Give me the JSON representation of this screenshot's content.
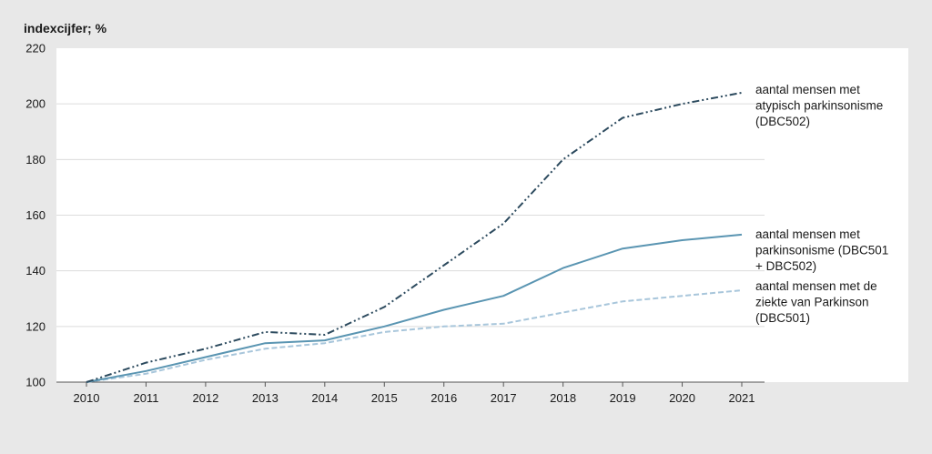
{
  "chart_data": {
    "type": "line",
    "ylabel": "indexcijfer; %",
    "xlabel": "",
    "title": "",
    "x": [
      "2010",
      "2011",
      "2012",
      "2013",
      "2014",
      "2015",
      "2016",
      "2017",
      "2018",
      "2019",
      "2020",
      "2021"
    ],
    "ylim": [
      100,
      220
    ],
    "yticks": [
      100,
      120,
      140,
      160,
      180,
      200,
      220
    ],
    "grid": true,
    "series": [
      {
        "annotation": [
          "aantal mensen met",
          "atypisch parkinsonisme",
          "(DBC502)"
        ],
        "color": "#2c4a5e",
        "style": "dash-dot-dot",
        "values": [
          100,
          107,
          112,
          118,
          117,
          127,
          142,
          157,
          180,
          195,
          200,
          204
        ]
      },
      {
        "annotation": [
          "aantal mensen met",
          "parkinsonisme (DBC501",
          "+ DBC502)"
        ],
        "color": "#5a95b2",
        "style": "solid",
        "values": [
          100,
          104,
          109,
          114,
          115,
          120,
          126,
          131,
          141,
          148,
          151,
          153
        ]
      },
      {
        "annotation": [
          "aantal mensen met de",
          "ziekte van Parkinson",
          "(DBC501)"
        ],
        "color": "#a8c6db",
        "style": "dashed",
        "values": [
          100,
          103,
          108,
          112,
          114,
          118,
          120,
          121,
          125,
          129,
          131,
          133
        ]
      }
    ]
  }
}
